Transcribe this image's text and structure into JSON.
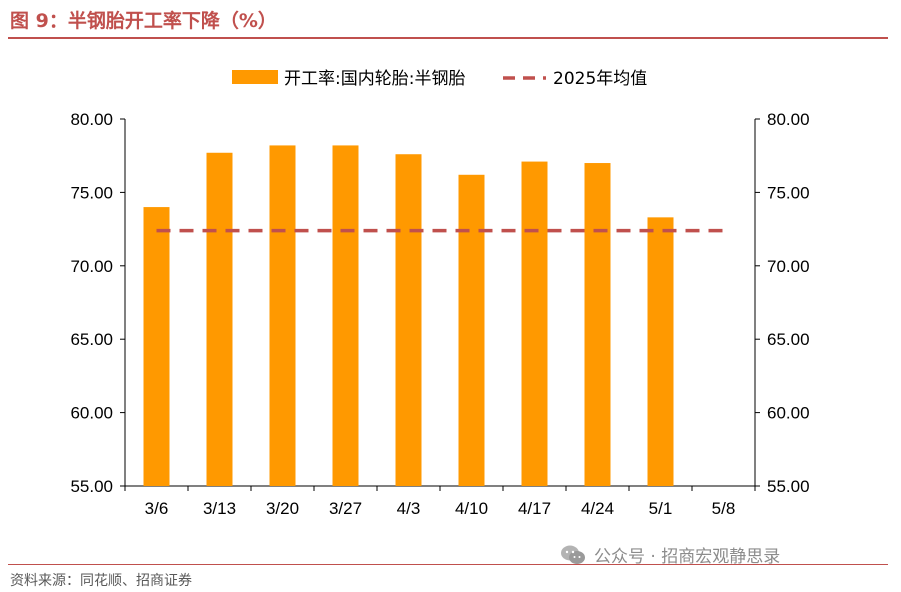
{
  "page": {
    "title": "图 9：半钢胎开工率下降（%）",
    "source": "资料来源：同花顺、招商证券",
    "watermark": "公众号 · 招商宏观静思录",
    "watermark_icon": "wechat-icon"
  },
  "colors": {
    "bar": "#ff9900",
    "avg_line": "#c0504d",
    "accent": "#c0504d"
  },
  "chart_data": {
    "type": "bar",
    "categories": [
      "3/6",
      "3/13",
      "3/20",
      "3/27",
      "4/3",
      "4/10",
      "4/17",
      "4/24",
      "5/1",
      "5/8"
    ],
    "series": [
      {
        "name": "开工率:国内轮胎:半钢胎",
        "type": "bar",
        "values": [
          74.0,
          77.7,
          78.2,
          78.2,
          77.6,
          76.2,
          77.1,
          77.0,
          73.3,
          null
        ]
      },
      {
        "name": "2025年均值",
        "type": "line-dashed",
        "values": [
          72.4,
          72.4,
          72.4,
          72.4,
          72.4,
          72.4,
          72.4,
          72.4,
          72.4,
          72.4
        ]
      }
    ],
    "y_ticks": [
      "55.00",
      "60.00",
      "65.00",
      "70.00",
      "75.00",
      "80.00"
    ],
    "ylim": [
      55,
      80
    ],
    "y2lim": [
      55,
      80
    ],
    "legend_position": "top-center",
    "grid": false
  }
}
